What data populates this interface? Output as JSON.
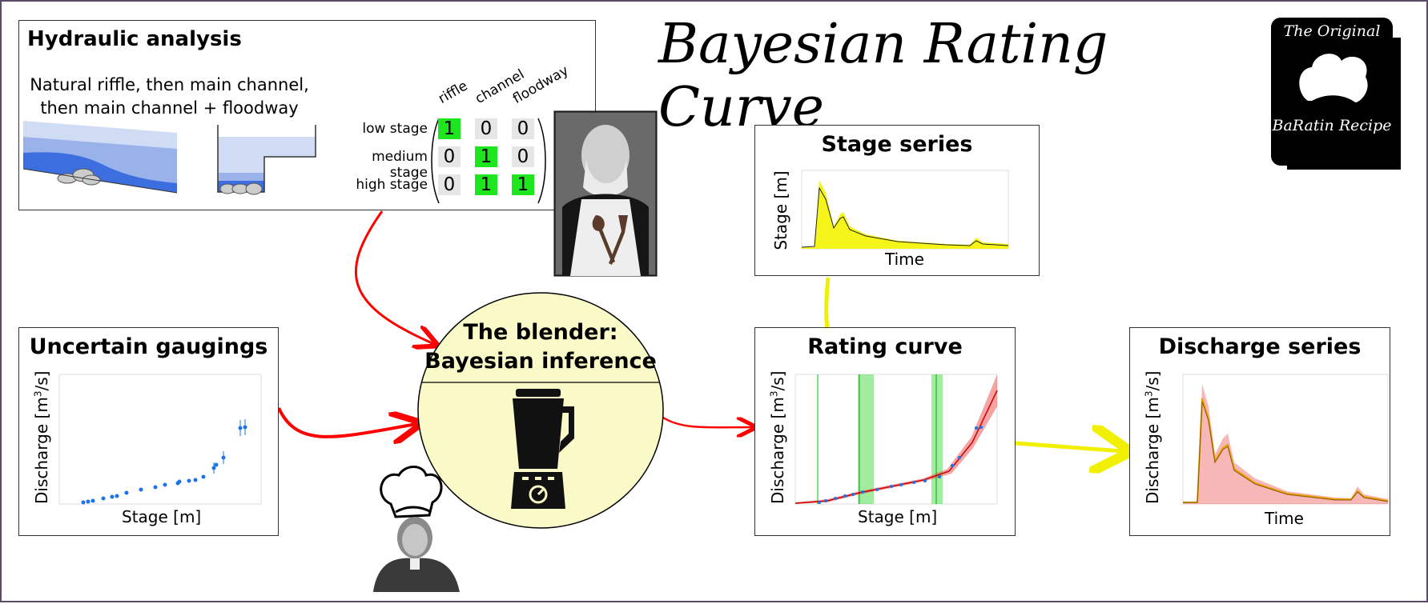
{
  "title": "Bayesian Rating Curve",
  "logo": {
    "line1": "The Original",
    "line2": "BaRatin Recipe",
    "icon": "chef-hat-icon"
  },
  "hydraulic": {
    "title": "Hydraulic analysis",
    "description_line1": "Natural riffle, then main channel,",
    "description_line2": "then main channel + floodway",
    "columns": [
      "riffle",
      "channel",
      "floodway"
    ],
    "rows": [
      {
        "label": "low stage",
        "values": [
          "1",
          "0",
          "0"
        ],
        "active": [
          true,
          false,
          false
        ]
      },
      {
        "label": "medium stage",
        "values": [
          "0",
          "1",
          "0"
        ],
        "active": [
          false,
          true,
          false
        ]
      },
      {
        "label": "high stage",
        "values": [
          "0",
          "1",
          "1"
        ],
        "active": [
          false,
          true,
          true
        ]
      }
    ],
    "colors": {
      "active": "#1ee61e",
      "inactive": "#e6e6e6",
      "water_light": "#d0dcf4",
      "water_mid": "#9ab2ea",
      "water_dark": "#3c6ee0"
    }
  },
  "gaugings": {
    "title": "Uncertain gaugings",
    "xlabel": "Stage [m]",
    "ylabel_main": "Discharge [m",
    "ylabel_sup": "3",
    "ylabel_end": "/s]"
  },
  "blender": {
    "line1": "The blender:",
    "line2": "Bayesian inference",
    "icon": "blender-icon",
    "fill": "#fafac8"
  },
  "stage_series": {
    "title": "Stage series",
    "xlabel": "Time",
    "ylabel": "Stage [m]"
  },
  "rating_curve": {
    "title": "Rating curve",
    "xlabel": "Stage [m]",
    "ylabel_main": "Discharge [m",
    "ylabel_sup": "3",
    "ylabel_end": "/s]"
  },
  "discharge_series": {
    "title": "Discharge series",
    "xlabel": "Time",
    "ylabel_main": "Discharge [m",
    "ylabel_sup": "3",
    "ylabel_end": "/s]"
  },
  "colors": {
    "arrow_red": "#ff0000",
    "arrow_yellow": "#f0f000",
    "gauging_blue": "#1a73e8",
    "band_red": "#e83232",
    "band_green": "#55dd55"
  }
}
